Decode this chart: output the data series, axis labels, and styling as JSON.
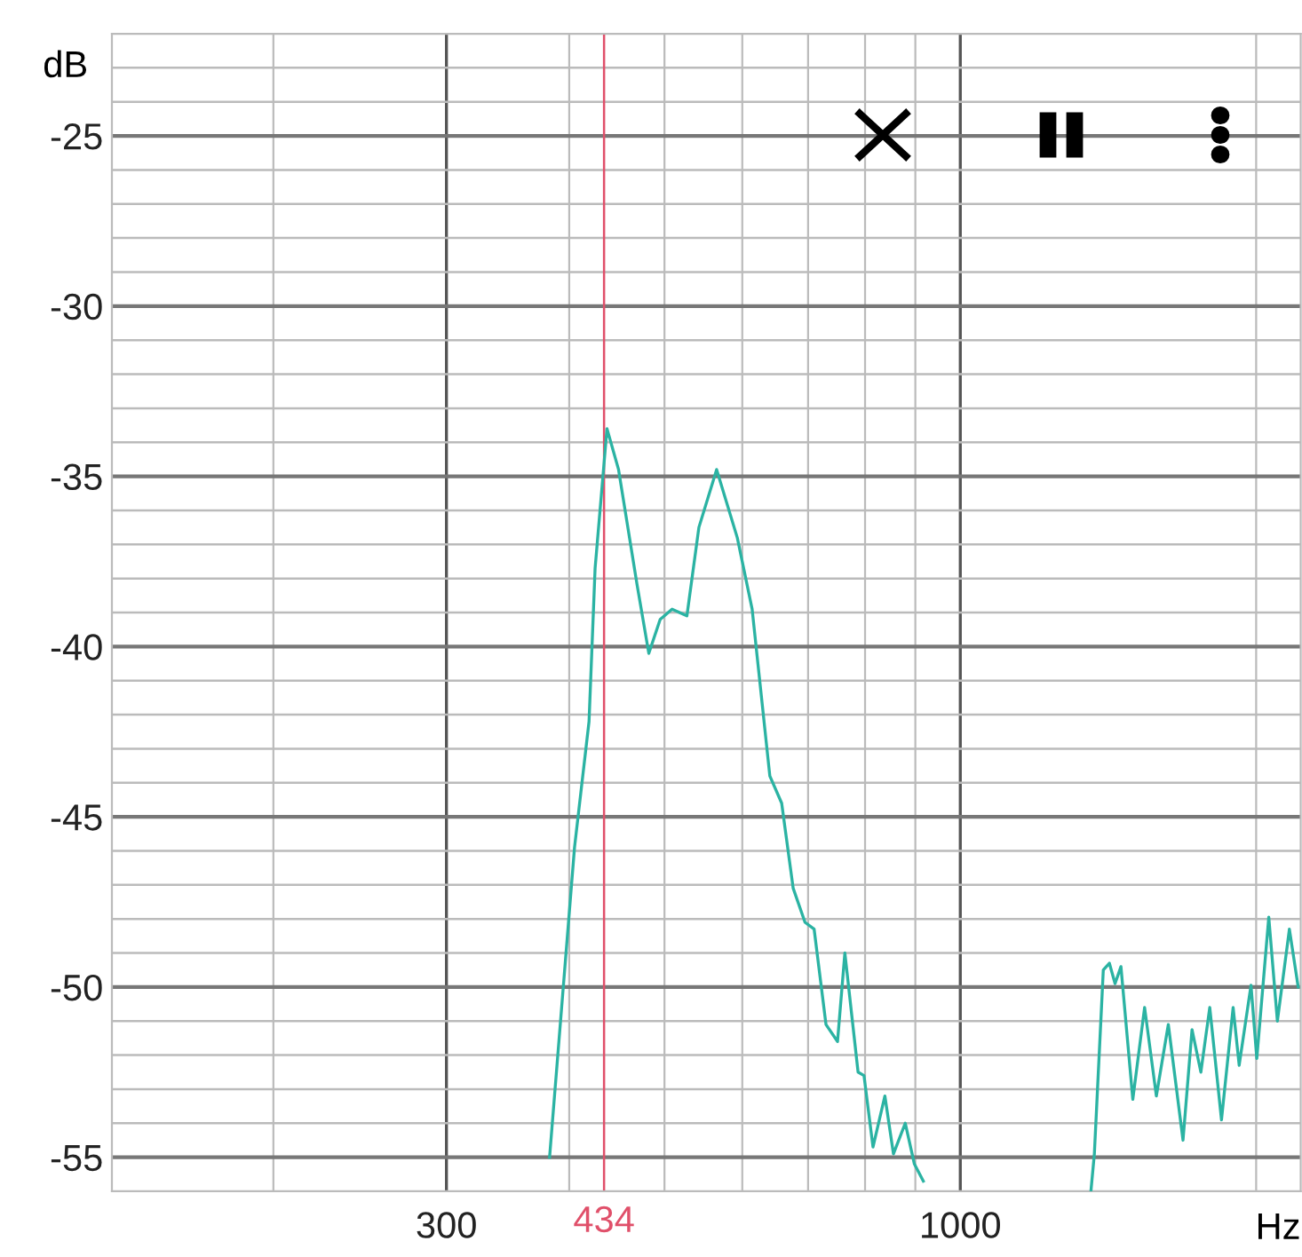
{
  "chart_data": {
    "type": "line",
    "xlabel": "Hz",
    "ylabel": "dB",
    "log": "x",
    "grid": true,
    "marker": "none",
    "line_style": "solid",
    "xlim": [
      137,
      2220
    ],
    "ylim": [
      -56,
      -22
    ],
    "xticks": [
      {
        "value": 200,
        "label": null
      },
      300,
      {
        "value": 400,
        "label": null
      },
      {
        "value": 500,
        "label": null
      },
      {
        "value": 600,
        "label": null
      },
      {
        "value": 700,
        "label": null
      },
      {
        "value": 800,
        "label": null
      },
      {
        "value": 900,
        "label": null
      },
      1000,
      {
        "value": 2000,
        "label": null
      }
    ],
    "yticks": [
      {
        "value": -56,
        "label": null
      },
      -55,
      {
        "value": -54,
        "label": null
      },
      {
        "value": -53,
        "label": null
      },
      {
        "value": -52,
        "label": null
      },
      {
        "value": -51,
        "label": null
      },
      -50,
      {
        "value": -49,
        "label": null
      },
      {
        "value": -48,
        "label": null
      },
      {
        "value": -47,
        "label": null
      },
      {
        "value": -46,
        "label": null
      },
      -45,
      {
        "value": -44,
        "label": null
      },
      {
        "value": -43,
        "label": null
      },
      {
        "value": -42,
        "label": null
      },
      {
        "value": -41,
        "label": null
      },
      -40,
      {
        "value": -39,
        "label": null
      },
      {
        "value": -38,
        "label": null
      },
      {
        "value": -37,
        "label": null
      },
      {
        "value": -36,
        "label": null
      },
      -35,
      {
        "value": -34,
        "label": null
      },
      {
        "value": -33,
        "label": null
      },
      {
        "value": -32,
        "label": null
      },
      {
        "value": -31,
        "label": null
      },
      -30,
      {
        "value": -29,
        "label": null
      },
      {
        "value": -28,
        "label": null
      },
      {
        "value": -27,
        "label": null
      },
      {
        "value": -26,
        "label": null
      },
      -25,
      {
        "value": -24,
        "label": null
      },
      {
        "value": -23,
        "label": null
      },
      {
        "value": -22,
        "label": null
      }
    ],
    "ref_lines": [
      {
        "axis": "x",
        "value": 434,
        "label": "434",
        "color": "#e0506a"
      }
    ],
    "series": [
      {
        "color": "#2bb3a3",
        "x": [
          382,
          405,
          419,
          425,
          437,
          449,
          469,
          482,
          495,
          509,
          527,
          542,
          565,
          593,
          614,
          640,
          658,
          676,
          695,
          710,
          730,
          750,
          763,
          787,
          798,
          815,
          838,
          855,
          879,
          898,
          917
        ],
        "values": [
          -55,
          -45.9,
          -42.2,
          -37.7,
          -33.6,
          -34.8,
          -38.2,
          -40.2,
          -39.2,
          -38.9,
          -39.1,
          -36.5,
          -34.8,
          -36.8,
          -38.9,
          -43.8,
          -44.6,
          -47.1,
          -48.1,
          -48.3,
          -51.1,
          -51.6,
          -49.0,
          -52.5,
          -52.6,
          -54.7,
          -53.2,
          -54.9,
          -54.0,
          -55.2,
          -55.7
        ]
      },
      {
        "color": "#2bb3a3",
        "x": [
          1358,
          1369,
          1398,
          1418,
          1437,
          1457,
          1498,
          1540,
          1583,
          1628,
          1685,
          1721,
          1757,
          1794,
          1844,
          1895,
          1922,
          1976,
          2003,
          2060,
          2102,
          2162,
          2207
        ],
        "values": [
          -56,
          -54.9,
          -49.5,
          -49.3,
          -49.9,
          -49.4,
          -53.3,
          -50.6,
          -53.2,
          -51.1,
          -54.5,
          -51.25,
          -52.5,
          -50.6,
          -53.9,
          -50.6,
          -52.3,
          -49.95,
          -52.1,
          -47.95,
          -51.0,
          -48.3,
          -50.0
        ]
      }
    ]
  }
}
